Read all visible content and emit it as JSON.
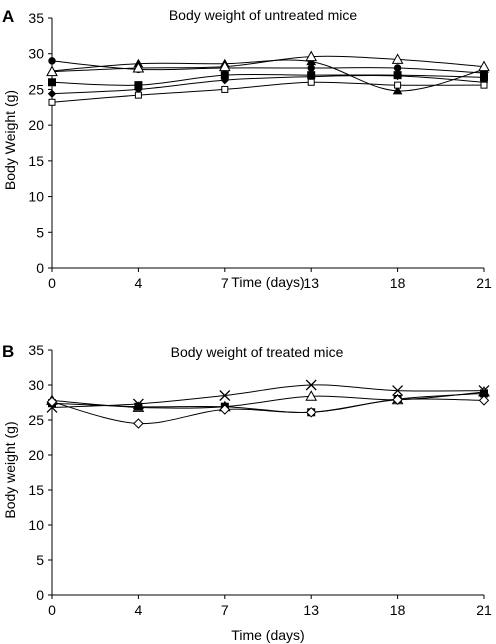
{
  "chart_data": [
    {
      "panel_label": "A",
      "type": "line",
      "title": "Body weight of untreated mice",
      "xlabel": "Time (days)",
      "ylabel": "Body Weight (g)",
      "x": [
        0,
        4,
        7,
        13,
        18,
        21
      ],
      "ylim": [
        0,
        35
      ],
      "yticks": [
        0,
        5,
        10,
        15,
        20,
        25,
        30,
        35
      ],
      "series": [
        {
          "marker": "filled-circle",
          "values": [
            29.0,
            27.8,
            28.0,
            28.0,
            28.0,
            27.3
          ]
        },
        {
          "marker": "filled-triangle",
          "values": [
            27.6,
            28.6,
            28.6,
            28.9,
            24.8,
            27.8
          ]
        },
        {
          "marker": "open-triangle",
          "values": [
            27.5,
            28.0,
            28.2,
            29.6,
            29.2,
            28.2
          ]
        },
        {
          "marker": "filled-square",
          "values": [
            26.0,
            25.6,
            27.0,
            27.0,
            27.0,
            26.7
          ]
        },
        {
          "marker": "filled-diamond",
          "values": [
            24.4,
            25.0,
            26.3,
            26.8,
            26.9,
            26.0
          ]
        },
        {
          "marker": "open-square",
          "values": [
            23.2,
            24.2,
            25.0,
            26.0,
            25.6,
            25.6
          ]
        }
      ]
    },
    {
      "panel_label": "B",
      "type": "line",
      "title": "Body weight of treated mice",
      "xlabel": "Time (days)",
      "ylabel": "Body weight (g)",
      "x": [
        0,
        4,
        7,
        13,
        18,
        21
      ],
      "ylim": [
        0,
        35
      ],
      "yticks": [
        0,
        5,
        10,
        15,
        20,
        25,
        30,
        35
      ],
      "series": [
        {
          "marker": "cross",
          "values": [
            26.8,
            27.3,
            28.5,
            30.0,
            29.2,
            29.2
          ]
        },
        {
          "marker": "open-triangle",
          "values": [
            27.8,
            26.8,
            26.9,
            28.4,
            27.9,
            29.0
          ]
        },
        {
          "marker": "filled-square",
          "values": [
            27.4,
            26.9,
            26.9,
            26.1,
            28.0,
            28.8
          ]
        },
        {
          "marker": "open-diamond",
          "values": [
            27.6,
            24.5,
            26.5,
            26.1,
            27.9,
            27.8
          ]
        }
      ]
    }
  ]
}
